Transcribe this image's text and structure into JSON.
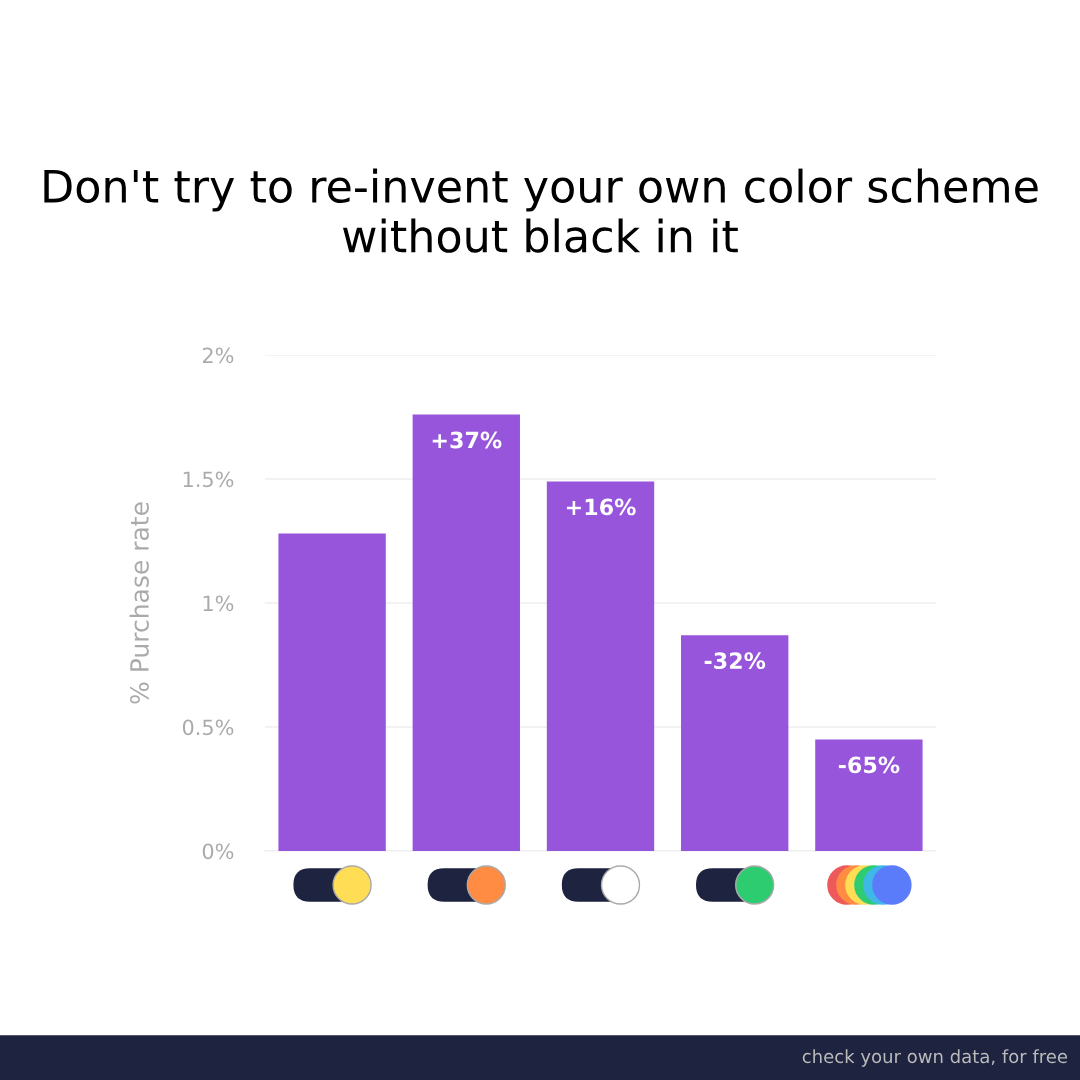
{
  "chart_data": {
    "type": "bar",
    "title": "Don't try to re-invent your own color scheme without black in it",
    "ylabel": "% Purchase rate",
    "categories": [
      null,
      null,
      null,
      null,
      null
    ],
    "values": [
      1.28,
      1.76,
      1.49,
      0.87,
      0.45
    ],
    "color": "#9755db",
    "ylim": [
      0,
      2
    ],
    "yticks": [
      {
        "value": 0,
        "label": "0%"
      },
      {
        "value": 0.5,
        "label": "0.5%"
      },
      {
        "value": 1,
        "label": "1%"
      },
      {
        "value": 1.5,
        "label": "1.5%"
      },
      {
        "value": 2,
        "label": "2%"
      }
    ],
    "grid": "y",
    "annotations": [
      {
        "text": "+37%",
        "y": 1.76
      },
      {
        "text": "+16%",
        "y": 1.49
      },
      {
        "text": "-32%",
        "y": 0.87
      },
      {
        "text": "-65%",
        "y": 0.45
      },
      "check your own data, for free"
    ]
  }
}
